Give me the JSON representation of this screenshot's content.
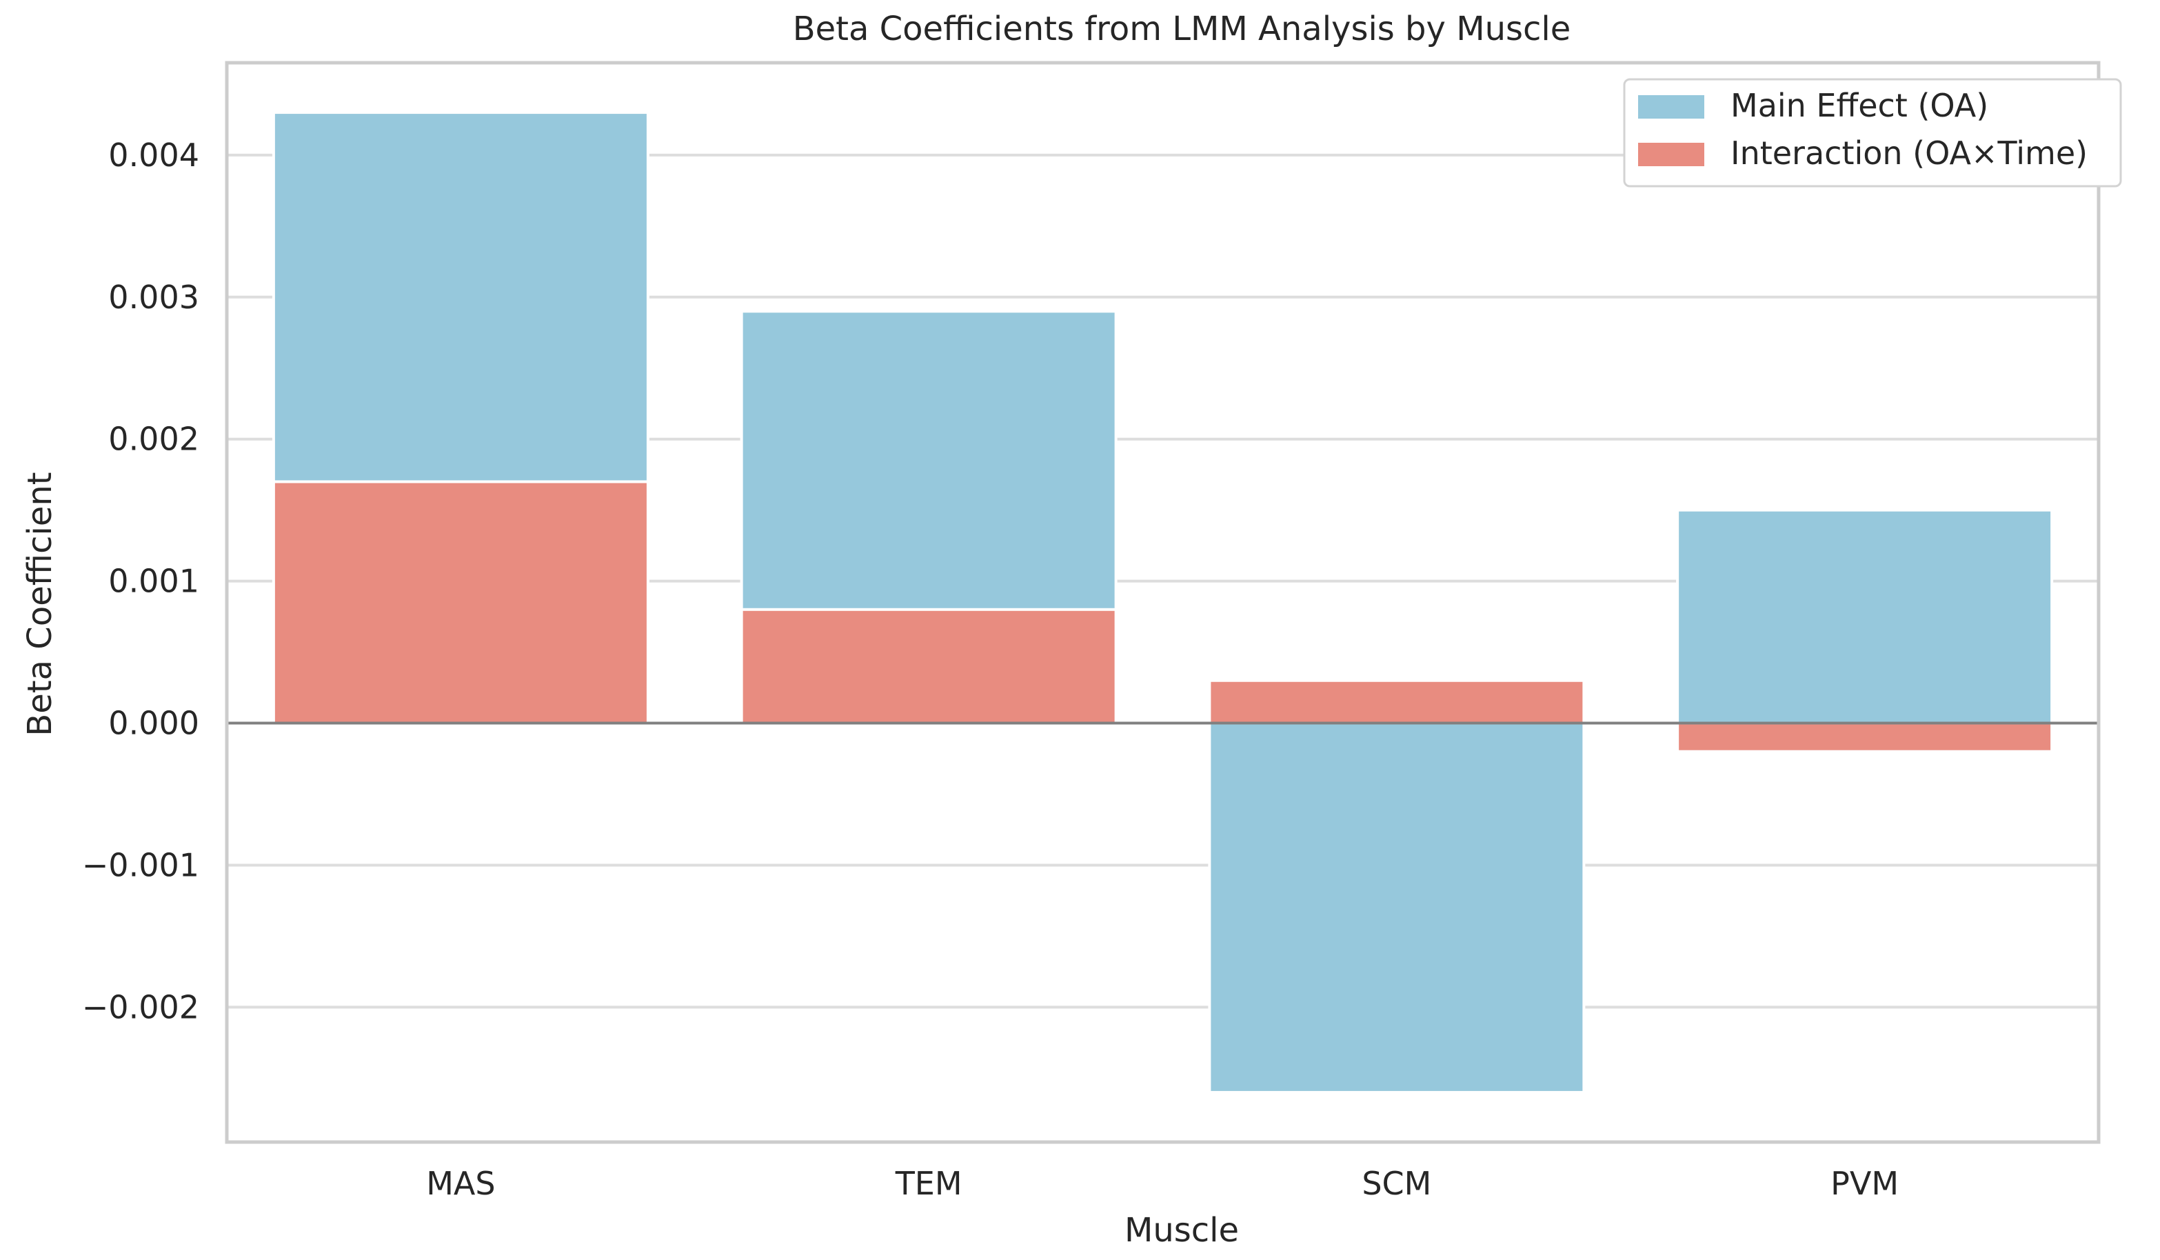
{
  "chart_data": {
    "type": "bar",
    "title": "Beta Coefficients from LMM Analysis by Muscle",
    "xlabel": "Muscle",
    "ylabel": "Beta Coefficient",
    "categories": [
      "MAS",
      "TEM",
      "SCM",
      "PVM"
    ],
    "series": [
      {
        "name": "Main Effect (OA)",
        "color": "#96C8DC",
        "values": [
          0.0043,
          0.0029,
          -0.0026,
          0.0015
        ]
      },
      {
        "name": "Interaction (OA×Time)",
        "color": "#E88C80",
        "values": [
          0.0017,
          0.0008,
          0.0003,
          -0.0002
        ]
      }
    ],
    "ylim": [
      -0.00295,
      0.00465
    ],
    "yticks": [
      "0.004",
      "0.003",
      "0.002",
      "0.001",
      "0.000",
      "−0.001",
      "−0.002"
    ],
    "ytick_values": [
      0.004,
      0.003,
      0.002,
      0.001,
      0.0,
      -0.001,
      -0.002
    ],
    "grid": true,
    "legend_position": "top-right",
    "zero_line_color": "#808080"
  }
}
